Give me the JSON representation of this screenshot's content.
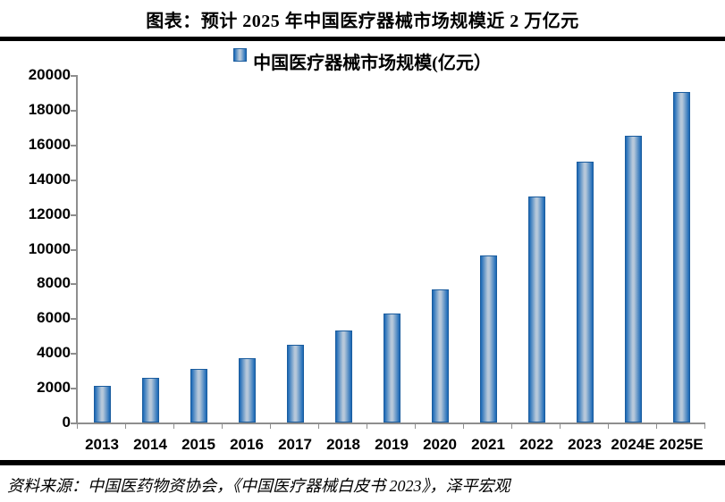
{
  "header": {
    "title": "图表：预计 2025 年中国医疗器械市场规模近 2 万亿元"
  },
  "footer": {
    "source": "资料来源：中国医药物资协会，《中国医疗器械白皮书 2023》，泽平宏观"
  },
  "colors": {
    "bar_edge": "#1968b6",
    "bar_light": "#b6c8da",
    "bar_border": "#1a5c9e",
    "axis": "#8e8e8e",
    "rule": "#000000",
    "text": "#000000"
  },
  "chart_data": {
    "type": "bar",
    "title": "图表：预计 2025 年中国医疗器械市场规模近 2 万亿元",
    "legend": [
      "中国医疗器械市场规模(亿元）"
    ],
    "legend_position": "top",
    "categories": [
      "2013",
      "2014",
      "2015",
      "2016",
      "2017",
      "2018",
      "2019",
      "2020",
      "2021",
      "2022",
      "2023",
      "2024E",
      "2025E"
    ],
    "values": [
      2120,
      2556,
      3080,
      3700,
      4450,
      5304,
      6285,
      7655,
      9630,
      13000,
      15000,
      16500,
      19000
    ],
    "xlabel": "",
    "ylabel": "",
    "ylim": [
      0,
      20000
    ],
    "ytick_step": 2000,
    "grid": false
  }
}
